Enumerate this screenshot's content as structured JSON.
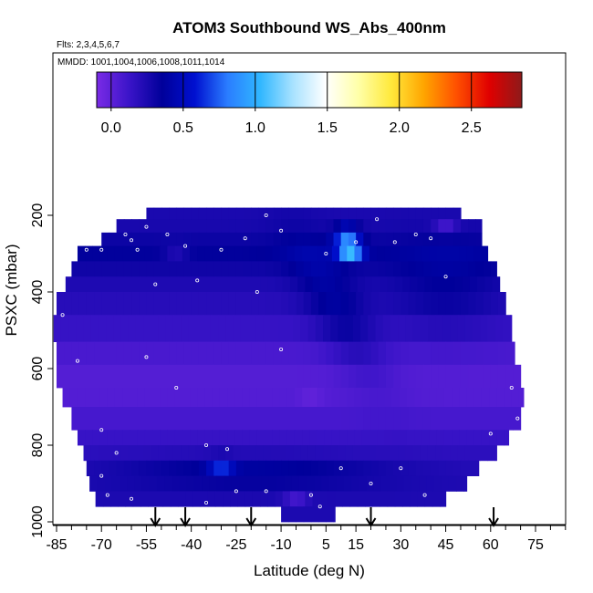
{
  "chart_data": {
    "type": "heatmap",
    "title": "ATOM3 Southbound WS_Abs_400nm",
    "flights_note": "Flts: 2,3,4,5,6,7",
    "dates_note": "MMDD: 1001,1004,1006,1008,1011,1014",
    "xlabel": "Latitude (deg N)",
    "ylabel": "PSXC (mbar)",
    "xlim": [
      -85,
      85
    ],
    "ylim": [
      1000,
      120
    ],
    "x_ticks": [
      -85,
      -70,
      -55,
      -40,
      -25,
      -10,
      5,
      15,
      30,
      45,
      60,
      75
    ],
    "x_tick_labels": [
      "-85",
      "-70",
      "-55",
      "-40",
      "-25",
      "-10",
      "5",
      "15",
      "30",
      "45",
      "60",
      "75"
    ],
    "y_ticks": [
      200,
      400,
      600,
      800,
      1000
    ],
    "y_tick_labels": [
      "200",
      "400",
      "600",
      "800",
      "1000"
    ],
    "colorbar": {
      "min": -0.1,
      "max": 2.85,
      "ticks": [
        0.0,
        0.5,
        1.0,
        1.5,
        2.0,
        2.5
      ],
      "tick_labels": [
        "0.0",
        "0.5",
        "1.0",
        "1.5",
        "2.0",
        "2.5"
      ],
      "colors": [
        "#7a2be6",
        "#3a14c8",
        "#00009a",
        "#0010d0",
        "#2a7dff",
        "#30b7ff",
        "#a8e2ff",
        "#ffffff",
        "#ffffa8",
        "#ffe93c",
        "#ffa500",
        "#ff5000",
        "#e00000",
        "#8e1a1a"
      ]
    },
    "pressure_bins": [
      {
        "p": [
          180,
          210
        ],
        "lat": [
          -55,
          50
        ]
      },
      {
        "p": [
          210,
          245
        ],
        "lat": [
          -65,
          57
        ]
      },
      {
        "p": [
          245,
          280
        ],
        "lat": [
          -70,
          57
        ]
      },
      {
        "p": [
          280,
          320
        ],
        "lat": [
          -78,
          59
        ]
      },
      {
        "p": [
          320,
          360
        ],
        "lat": [
          -80,
          62
        ]
      },
      {
        "p": [
          360,
          400
        ],
        "lat": [
          -82,
          63
        ]
      },
      {
        "p": [
          400,
          460
        ],
        "lat": [
          -85,
          65
        ]
      },
      {
        "p": [
          460,
          530
        ],
        "lat": [
          -86,
          67
        ]
      },
      {
        "p": [
          530,
          590
        ],
        "lat": [
          -85,
          68
        ]
      },
      {
        "p": [
          590,
          650
        ],
        "lat": [
          -85,
          70
        ]
      },
      {
        "p": [
          650,
          700
        ],
        "lat": [
          -83,
          71
        ]
      },
      {
        "p": [
          700,
          760
        ],
        "lat": [
          -80,
          70
        ]
      },
      {
        "p": [
          760,
          800
        ],
        "lat": [
          -78,
          66
        ]
      },
      {
        "p": [
          800,
          840
        ],
        "lat": [
          -76,
          62
        ]
      },
      {
        "p": [
          840,
          880
        ],
        "lat": [
          -75,
          56
        ]
      },
      {
        "p": [
          880,
          920
        ],
        "lat": [
          -74,
          52
        ]
      },
      {
        "p": [
          920,
          960
        ],
        "lat": [
          -72,
          45
        ]
      },
      {
        "p": [
          960,
          1000
        ],
        "lat": [
          -10,
          8
        ]
      }
    ],
    "hotspots": [
      {
        "lat": 12,
        "p": 250,
        "value": 1.15
      },
      {
        "lat": 13,
        "p": 290,
        "value": 1.3
      },
      {
        "lat": -45,
        "p": 290,
        "value": 0.2
      },
      {
        "lat": -30,
        "p": 850,
        "value": 0.75
      },
      {
        "lat": -5,
        "p": 940,
        "value": 0.1
      },
      {
        "lat": 45,
        "p": 230,
        "value": 0.1
      },
      {
        "lat": 0,
        "p": 690,
        "value": -0.05
      }
    ],
    "sample_points": [
      {
        "lat": -55,
        "p": 230
      },
      {
        "lat": -48,
        "p": 250
      },
      {
        "lat": -42,
        "p": 280
      },
      {
        "lat": -30,
        "p": 290
      },
      {
        "lat": -22,
        "p": 260
      },
      {
        "lat": -15,
        "p": 200
      },
      {
        "lat": -10,
        "p": 240
      },
      {
        "lat": 5,
        "p": 300
      },
      {
        "lat": 15,
        "p": 270
      },
      {
        "lat": 22,
        "p": 210
      },
      {
        "lat": 28,
        "p": 270
      },
      {
        "lat": 35,
        "p": 250
      },
      {
        "lat": 40,
        "p": 260
      },
      {
        "lat": 45,
        "p": 360
      },
      {
        "lat": 58,
        "p": 195
      },
      {
        "lat": 69,
        "p": 730
      },
      {
        "lat": -70,
        "p": 290
      },
      {
        "lat": -62,
        "p": 250
      },
      {
        "lat": -60,
        "p": 265
      },
      {
        "lat": -58,
        "p": 290
      },
      {
        "lat": -52,
        "p": 380
      },
      {
        "lat": -38,
        "p": 370
      },
      {
        "lat": -18,
        "p": 400
      },
      {
        "lat": -10,
        "p": 550
      },
      {
        "lat": -55,
        "p": 570
      },
      {
        "lat": -45,
        "p": 650
      },
      {
        "lat": -35,
        "p": 800
      },
      {
        "lat": -28,
        "p": 810
      },
      {
        "lat": -70,
        "p": 880
      },
      {
        "lat": -68,
        "p": 930
      },
      {
        "lat": -60,
        "p": 940
      },
      {
        "lat": -35,
        "p": 950
      },
      {
        "lat": -25,
        "p": 920
      },
      {
        "lat": -15,
        "p": 920
      },
      {
        "lat": 0,
        "p": 930
      },
      {
        "lat": 3,
        "p": 960
      },
      {
        "lat": 10,
        "p": 860
      },
      {
        "lat": 20,
        "p": 900
      },
      {
        "lat": 30,
        "p": 860
      },
      {
        "lat": 38,
        "p": 930
      },
      {
        "lat": 48,
        "p": 960
      },
      {
        "lat": 60,
        "p": 770
      },
      {
        "lat": 67,
        "p": 650
      },
      {
        "lat": -75,
        "p": 290
      },
      {
        "lat": -83,
        "p": 460
      },
      {
        "lat": -78,
        "p": 580
      },
      {
        "lat": -70,
        "p": 760
      },
      {
        "lat": -65,
        "p": 820
      }
    ],
    "flight_markers_lat": [
      -52,
      -42,
      -20,
      20,
      61
    ]
  }
}
